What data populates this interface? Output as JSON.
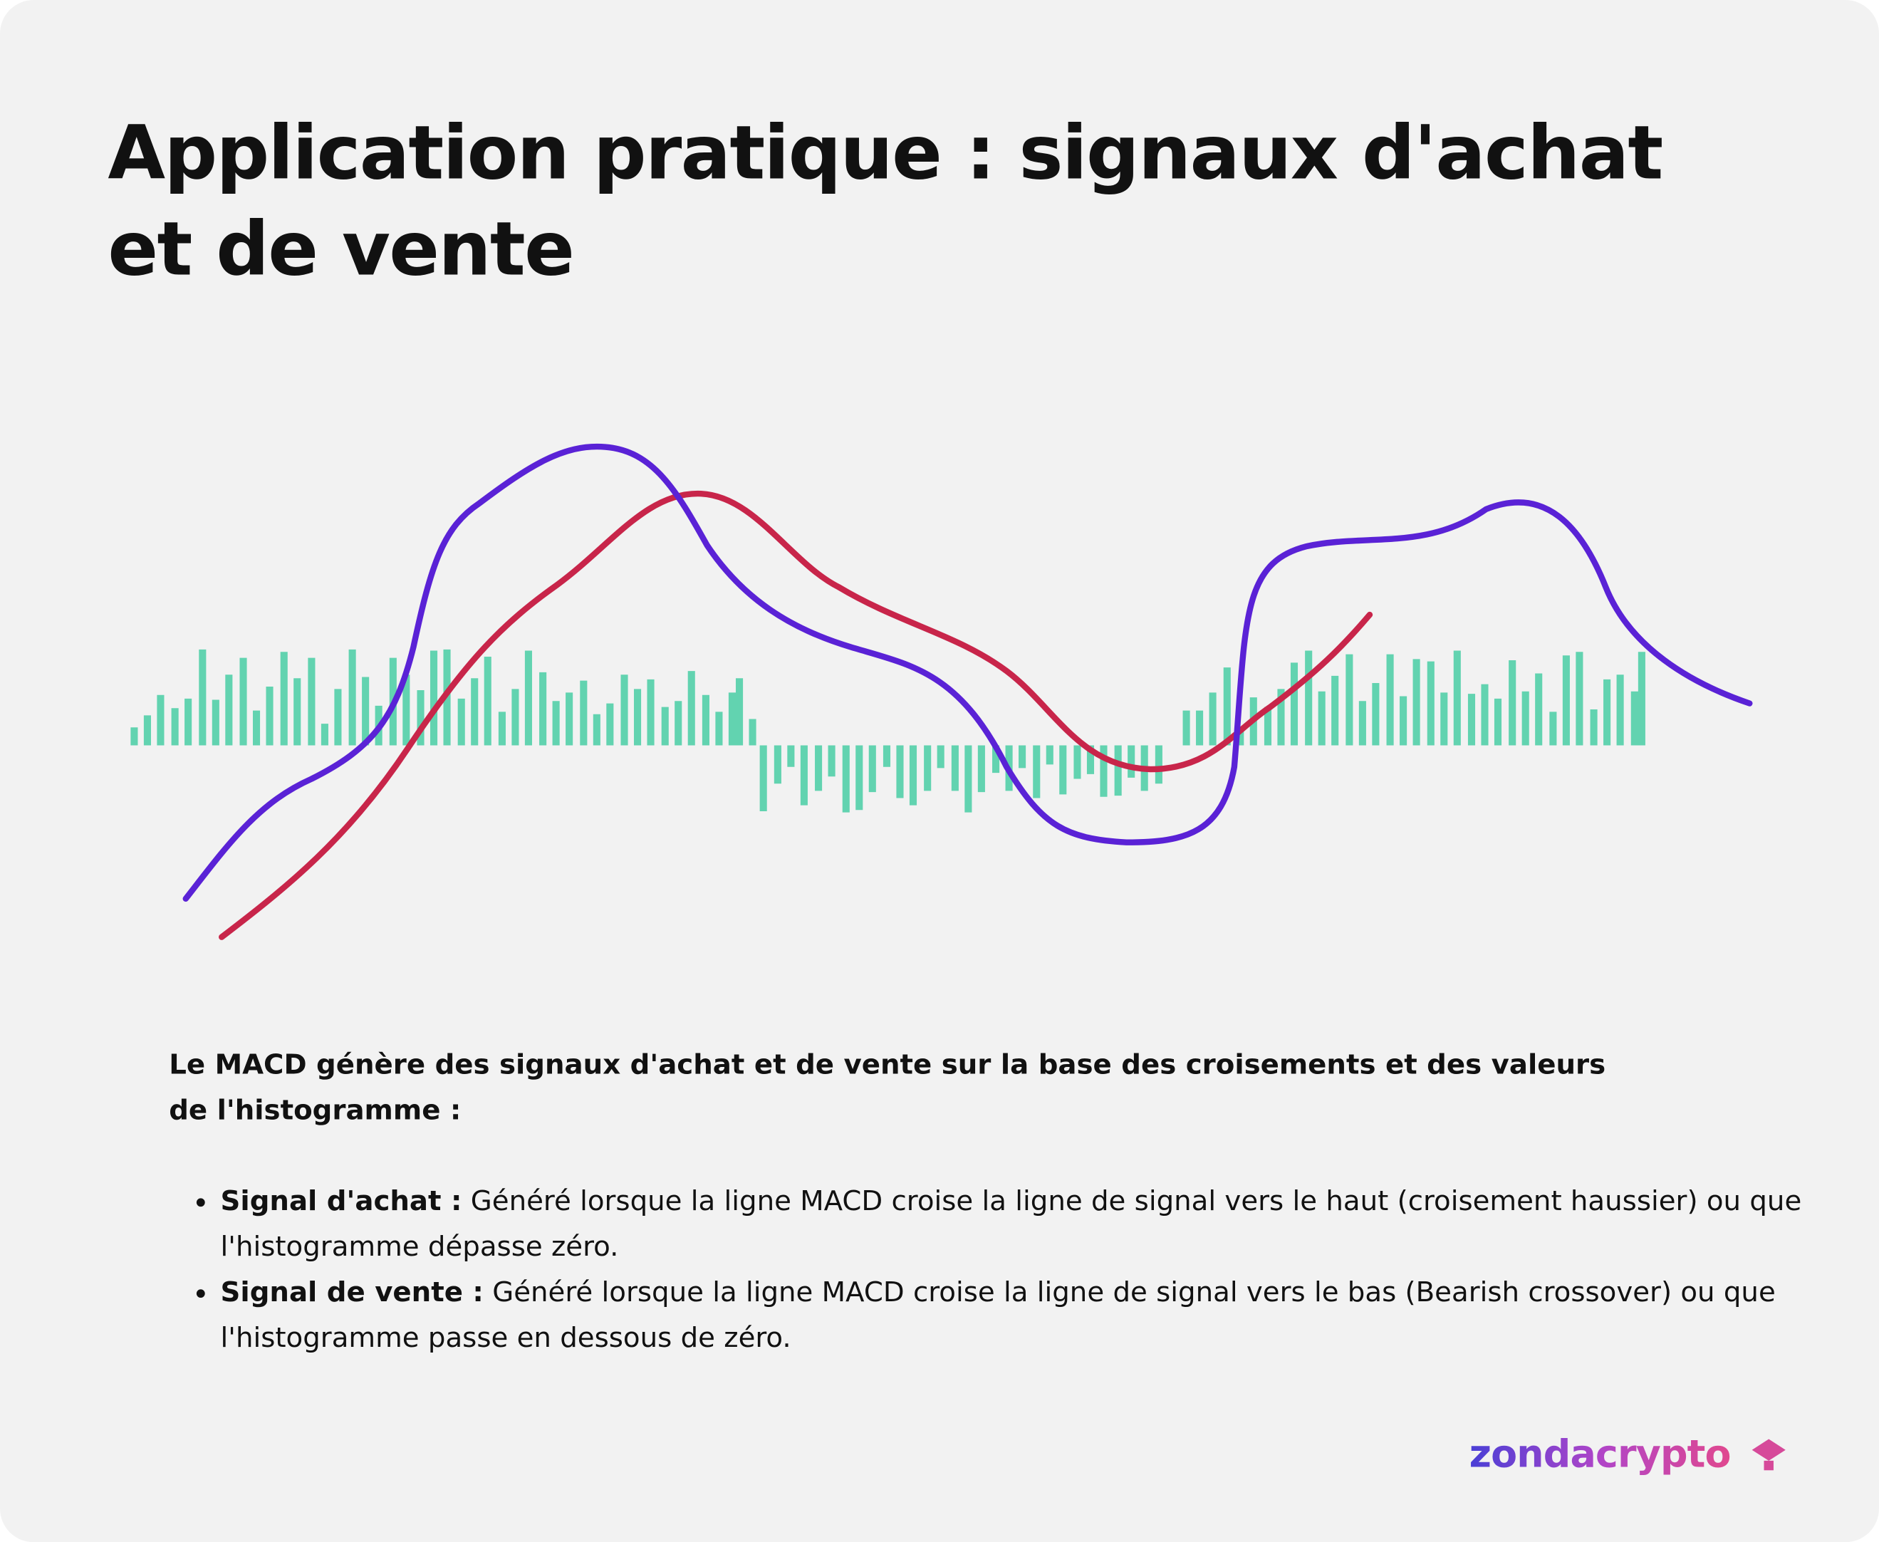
{
  "header": {
    "title": "Application pratique : signaux d'achat et de vente"
  },
  "body": {
    "intro": "Le MACD génère des signaux d'achat et de vente sur la base des croisements et des valeurs de l'histogramme :",
    "bullets": [
      {
        "label": "Signal d'achat :",
        "text": "Généré lorsque la ligne MACD croise la ligne de signal vers le haut (croisement haussier) ou que l'histogramme dépasse zéro."
      },
      {
        "label": "Signal de vente :",
        "text": "Généré lorsque la ligne MACD croise la ligne de signal vers le bas (Bearish crossover) ou que l'histogramme passe en dessous de zéro."
      }
    ]
  },
  "footer": {
    "logo": "zondacrypto"
  }
}
